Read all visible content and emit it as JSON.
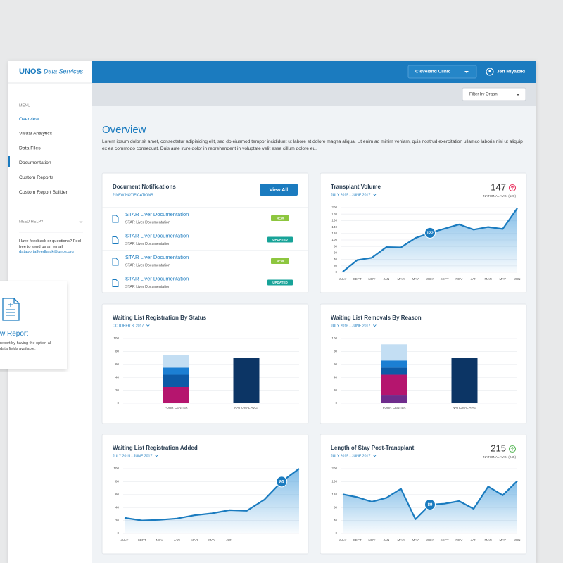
{
  "logo": {
    "brand": "UNOS",
    "product": "Data Services"
  },
  "header": {
    "organization": "Cleveland Clinic",
    "user": "Jeff Miyazaki",
    "filter": "Filter by Organ"
  },
  "sidebar": {
    "menu_label": "MENU",
    "items": [
      "Overview",
      "Visual Analytics",
      "Data Files",
      "Documentation",
      "Custom Reports",
      "Custom Report Builder"
    ],
    "help_label": "NEED HELP?",
    "help_text": "Have feedback or questions? Feel free to send us an email!",
    "help_email": "dataportalfeedback@unos.org"
  },
  "promo": {
    "title": "w Report",
    "text": "report by having the option all data fields available."
  },
  "page": {
    "title": "Overview",
    "intro": "Lorem ipsum dolor sit amet, consectetur adipisicing elit, sed do eiusmod tempor incididunt ut labore et dolore magna aliqua. Ut enim ad minim veniam, quis nostrud exercitation ullamco laboris nisi ut aliquip ex ea commodo consequat. Duis aute irure dolor in reprehenderit in voluptate velit esse cillum dolore eu."
  },
  "notifications": {
    "title": "Document Notifications",
    "subtitle": "2 NEW NOTIFICATIONS",
    "button": "View All",
    "items": [
      {
        "title": "STAR Liver Documentation",
        "detail": "STAR Liver Documentation",
        "badge": "NEW",
        "badge_color": "#8dc63f"
      },
      {
        "title": "STAR Liver Documentation",
        "detail": "STAR Liver Documentation",
        "badge": "UPDATED",
        "badge_color": "#17a398"
      },
      {
        "title": "STAR Liver Documentation",
        "detail": "STAR Liver Documentation",
        "badge": "NEW",
        "badge_color": "#8dc63f"
      },
      {
        "title": "STAR Liver Documentation",
        "detail": "STAR Liver Documentation",
        "badge": "UPDATED",
        "badge_color": "#17a398"
      }
    ]
  },
  "chart_data": [
    {
      "type": "line",
      "title": "Transplant Volume",
      "subtitle": "JULY 2015 - JUNE 2017",
      "stat": 147,
      "stat_note": "NATIONAL AVG. (120)",
      "stat_color": "#e8335f",
      "categories": [
        "JULY",
        "SEPT",
        "NOV",
        "JAN",
        "MAR",
        "MAY",
        "JULY",
        "SEPT",
        "NOV",
        "JAN",
        "MAR",
        "MAY",
        "JUN"
      ],
      "values": [
        2,
        38,
        45,
        78,
        77,
        106,
        122,
        135,
        148,
        132,
        140,
        134,
        198
      ],
      "color": "#1a7bbf",
      "highlight": 6,
      "ylim": [
        0,
        200
      ],
      "yticks": [
        0,
        20,
        40,
        60,
        80,
        100,
        120,
        140,
        160,
        180,
        200
      ],
      "grid": true
    },
    {
      "type": "bar",
      "stacked": true,
      "title": "Waiting List Registration By Status",
      "subtitle": "OCTOBER 3, 2017",
      "categories": [
        "YOUR CENTER",
        "NATIONAL AVG."
      ],
      "series": [
        {
          "color": "#b5156e",
          "values": [
            25,
            null
          ]
        },
        {
          "color": "#0d5aa7",
          "values": [
            19,
            null
          ]
        },
        {
          "color": "#1c7fd3",
          "values": [
            11,
            null
          ]
        },
        {
          "color": "#c3def3",
          "values": [
            20,
            null
          ]
        },
        {
          "color": "#0c3565",
          "values": [
            null,
            70
          ]
        }
      ],
      "ylim": [
        0,
        100
      ],
      "yticks": [
        0,
        20,
        40,
        60,
        80,
        100
      ],
      "grid": true
    },
    {
      "type": "bar",
      "stacked": true,
      "title": "Waiting List Removals By Reason",
      "subtitle": "JULY 2016 - JUNE 2017",
      "categories": [
        "YOUR CENTER",
        "NATIONAL AVG."
      ],
      "series": [
        {
          "color": "#6f2c8c",
          "values": [
            13,
            null
          ]
        },
        {
          "color": "#b5156e",
          "values": [
            31,
            null
          ]
        },
        {
          "color": "#0d5aa7",
          "values": [
            11,
            null
          ]
        },
        {
          "color": "#1c7fd3",
          "values": [
            11,
            null
          ]
        },
        {
          "color": "#c3def3",
          "values": [
            25,
            null
          ]
        },
        {
          "color": "#0c3565",
          "values": [
            null,
            70
          ]
        }
      ],
      "ylim": [
        0,
        100
      ],
      "yticks": [
        0,
        20,
        40,
        60,
        80,
        100
      ],
      "grid": true
    },
    {
      "type": "line",
      "title": "Waiting List Registration Added",
      "subtitle": "JULY 2015 - JUNE 2017",
      "categories": [
        "JULY",
        "SEPT",
        "NOV",
        "JAN",
        "MAR",
        "MAY",
        "JUN",
        null,
        null,
        null,
        null
      ],
      "values": [
        24,
        20,
        21,
        23,
        28,
        31,
        36,
        35,
        52,
        80,
        100
      ],
      "color": "#1a7bbf",
      "highlight": 9,
      "ylim": [
        0,
        100
      ],
      "yticks": [
        0,
        20,
        40,
        60,
        80,
        100
      ],
      "grid": true
    },
    {
      "type": "line",
      "title": "Length of Stay Post-Transplant",
      "subtitle": "JULY 2015 - JUNE 2017",
      "stat": 215,
      "stat_note": "NATIONAL AVG. (245)",
      "stat_color": "#5cb85c",
      "categories": [
        "JULY",
        "SEPT",
        "NOV",
        "JAN",
        "MAR",
        "MAY",
        "JULY",
        "SEPT",
        "NOV",
        "JAN",
        "MAR",
        "MAY",
        "JUN"
      ],
      "values": [
        121,
        112,
        98,
        110,
        138,
        44,
        89,
        92,
        100,
        76,
        145,
        118,
        162
      ],
      "color": "#1a7bbf",
      "highlight": 6,
      "ylim": [
        0,
        200
      ],
      "yticks": [
        0,
        40,
        80,
        120,
        160,
        200
      ],
      "grid": true
    }
  ]
}
